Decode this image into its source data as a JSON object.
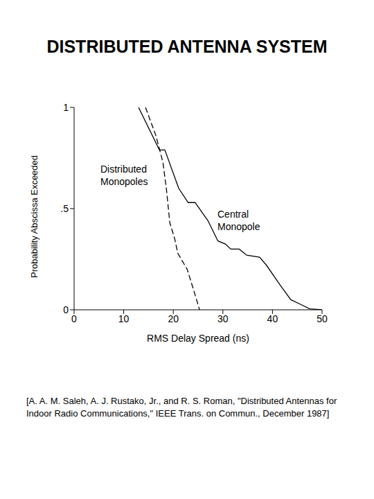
{
  "chart_data": {
    "type": "line",
    "title": "DISTRIBUTED ANTENNA SYSTEM",
    "x_label": "RMS Delay Spread (ns)",
    "y_label": "Probability Abscissa Exceeded",
    "xlim": [
      0,
      50
    ],
    "xticks": [
      0,
      10,
      20,
      30,
      40,
      50
    ],
    "ylim": [
      0,
      1
    ],
    "yticks": [
      0,
      {
        "value": 0.5,
        "label": ".5"
      },
      1
    ],
    "series": [
      {
        "name": "Distributed Monopoles",
        "color": "#000000",
        "line_style": "dashed",
        "x": [
          14.4,
          16.5,
          17.9,
          18.6,
          19.3,
          20.3,
          20.9,
          22.8,
          24.2,
          25.3
        ],
        "values": [
          1,
          0.86,
          0.73,
          0.6,
          0.43,
          0.35,
          0.28,
          0.2,
          0.09,
          0
        ]
      },
      {
        "name": "Central Monopole",
        "color": "#000000",
        "line_style": "solid",
        "x": [
          13,
          17.2,
          18.3,
          21.1,
          23,
          24.4,
          27,
          29,
          30.5,
          31.6,
          33.3,
          34.8,
          37.4,
          38.8,
          41.6,
          43.7,
          45.4,
          47.5,
          50
        ],
        "values": [
          1,
          0.79,
          0.79,
          0.6,
          0.53,
          0.53,
          0.44,
          0.34,
          0.325,
          0.3,
          0.3,
          0.27,
          0.26,
          0.22,
          0.12,
          0.05,
          0.03,
          0.005,
          0
        ]
      }
    ],
    "source": "[A. A. M. Saleh, A. J. Rustako, Jr., and R. S. Roman, \"Distributed Antennas for Indoor Radio Communications,\" IEEE Trans. on Commun., December 1987]"
  }
}
